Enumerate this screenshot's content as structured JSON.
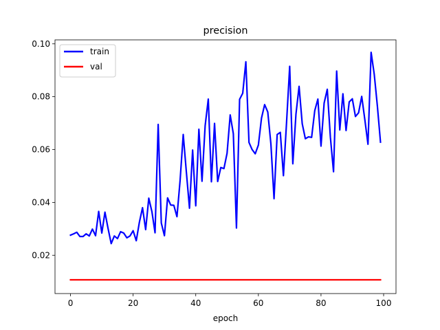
{
  "chart_data": {
    "type": "line",
    "title": "precision",
    "xlabel": "epoch",
    "ylabel": "",
    "xlim": [
      -4.95,
      103.95
    ],
    "ylim": [
      0.0055,
      0.1015
    ],
    "xticks": [
      0,
      20,
      40,
      60,
      80,
      100
    ],
    "xtick_labels": [
      "0",
      "20",
      "40",
      "60",
      "80",
      "100"
    ],
    "yticks": [
      0.02,
      0.04,
      0.06,
      0.08,
      0.1
    ],
    "ytick_labels": [
      "0.02",
      "0.04",
      "0.06",
      "0.08",
      "0.10"
    ],
    "grid": false,
    "legend_position": "upper-left",
    "x": [
      0,
      1,
      2,
      3,
      4,
      5,
      6,
      7,
      8,
      9,
      10,
      11,
      12,
      13,
      14,
      15,
      16,
      17,
      18,
      19,
      20,
      21,
      22,
      23,
      24,
      25,
      26,
      27,
      28,
      29,
      30,
      31,
      32,
      33,
      34,
      35,
      36,
      37,
      38,
      39,
      40,
      41,
      42,
      43,
      44,
      45,
      46,
      47,
      48,
      49,
      50,
      51,
      52,
      53,
      54,
      55,
      56,
      57,
      58,
      59,
      60,
      61,
      62,
      63,
      64,
      65,
      66,
      67,
      68,
      69,
      70,
      71,
      72,
      73,
      74,
      75,
      76,
      77,
      78,
      79,
      80,
      81,
      82,
      83,
      84,
      85,
      86,
      87,
      88,
      89,
      90,
      91,
      92,
      93,
      94,
      95,
      96,
      97,
      98,
      99
    ],
    "series": [
      {
        "name": "train",
        "color": "#0000ff",
        "values": [
          0.0276,
          0.0281,
          0.0287,
          0.0271,
          0.0271,
          0.0281,
          0.0273,
          0.0299,
          0.0274,
          0.0366,
          0.0284,
          0.0363,
          0.0301,
          0.0244,
          0.0273,
          0.0263,
          0.0289,
          0.0284,
          0.0266,
          0.0273,
          0.0293,
          0.0255,
          0.0325,
          0.038,
          0.0297,
          0.0416,
          0.0365,
          0.0285,
          0.0695,
          0.0322,
          0.0274,
          0.0417,
          0.039,
          0.0389,
          0.0346,
          0.0483,
          0.0657,
          0.0515,
          0.0378,
          0.0598,
          0.0387,
          0.0677,
          0.048,
          0.069,
          0.0791,
          0.0478,
          0.0699,
          0.0479,
          0.0532,
          0.0528,
          0.0586,
          0.0731,
          0.066,
          0.0303,
          0.079,
          0.0813,
          0.0932,
          0.0627,
          0.06,
          0.0584,
          0.0617,
          0.0719,
          0.077,
          0.0742,
          0.0621,
          0.0414,
          0.0657,
          0.0665,
          0.0501,
          0.0703,
          0.0915,
          0.0546,
          0.0734,
          0.0839,
          0.0698,
          0.0641,
          0.0648,
          0.0646,
          0.0747,
          0.0791,
          0.0613,
          0.0776,
          0.0828,
          0.0646,
          0.0516,
          0.0897,
          0.0674,
          0.0811,
          0.0672,
          0.078,
          0.0792,
          0.0725,
          0.0739,
          0.0801,
          0.0713,
          0.062,
          0.0968,
          0.0885,
          0.0765,
          0.0628
        ]
      },
      {
        "name": "val",
        "color": "#ff0000",
        "values": [
          0.0107,
          0.0107,
          0.0107,
          0.0107,
          0.0107,
          0.0107,
          0.0107,
          0.0107,
          0.0107,
          0.0107,
          0.0107,
          0.0107,
          0.0107,
          0.0107,
          0.0107,
          0.0107,
          0.0107,
          0.0107,
          0.0107,
          0.0107,
          0.0107,
          0.0107,
          0.0107,
          0.0107,
          0.0107,
          0.0107,
          0.0107,
          0.0107,
          0.0107,
          0.0107,
          0.0107,
          0.0107,
          0.0107,
          0.0107,
          0.0107,
          0.0107,
          0.0107,
          0.0107,
          0.0107,
          0.0107,
          0.0107,
          0.0107,
          0.0107,
          0.0107,
          0.0107,
          0.0107,
          0.0107,
          0.0107,
          0.0107,
          0.0107,
          0.0107,
          0.0107,
          0.0107,
          0.0107,
          0.0107,
          0.0107,
          0.0107,
          0.0107,
          0.0107,
          0.0107,
          0.0107,
          0.0107,
          0.0107,
          0.0107,
          0.0107,
          0.0107,
          0.0107,
          0.0107,
          0.0107,
          0.0107,
          0.0107,
          0.0107,
          0.0107,
          0.0107,
          0.0107,
          0.0107,
          0.0107,
          0.0107,
          0.0107,
          0.0107,
          0.0107,
          0.0107,
          0.0107,
          0.0107,
          0.0107,
          0.0107,
          0.0107,
          0.0107,
          0.0107,
          0.0107,
          0.0107,
          0.0107,
          0.0107,
          0.0107,
          0.0107,
          0.0107,
          0.0107,
          0.0107,
          0.0107,
          0.0107
        ]
      }
    ]
  }
}
